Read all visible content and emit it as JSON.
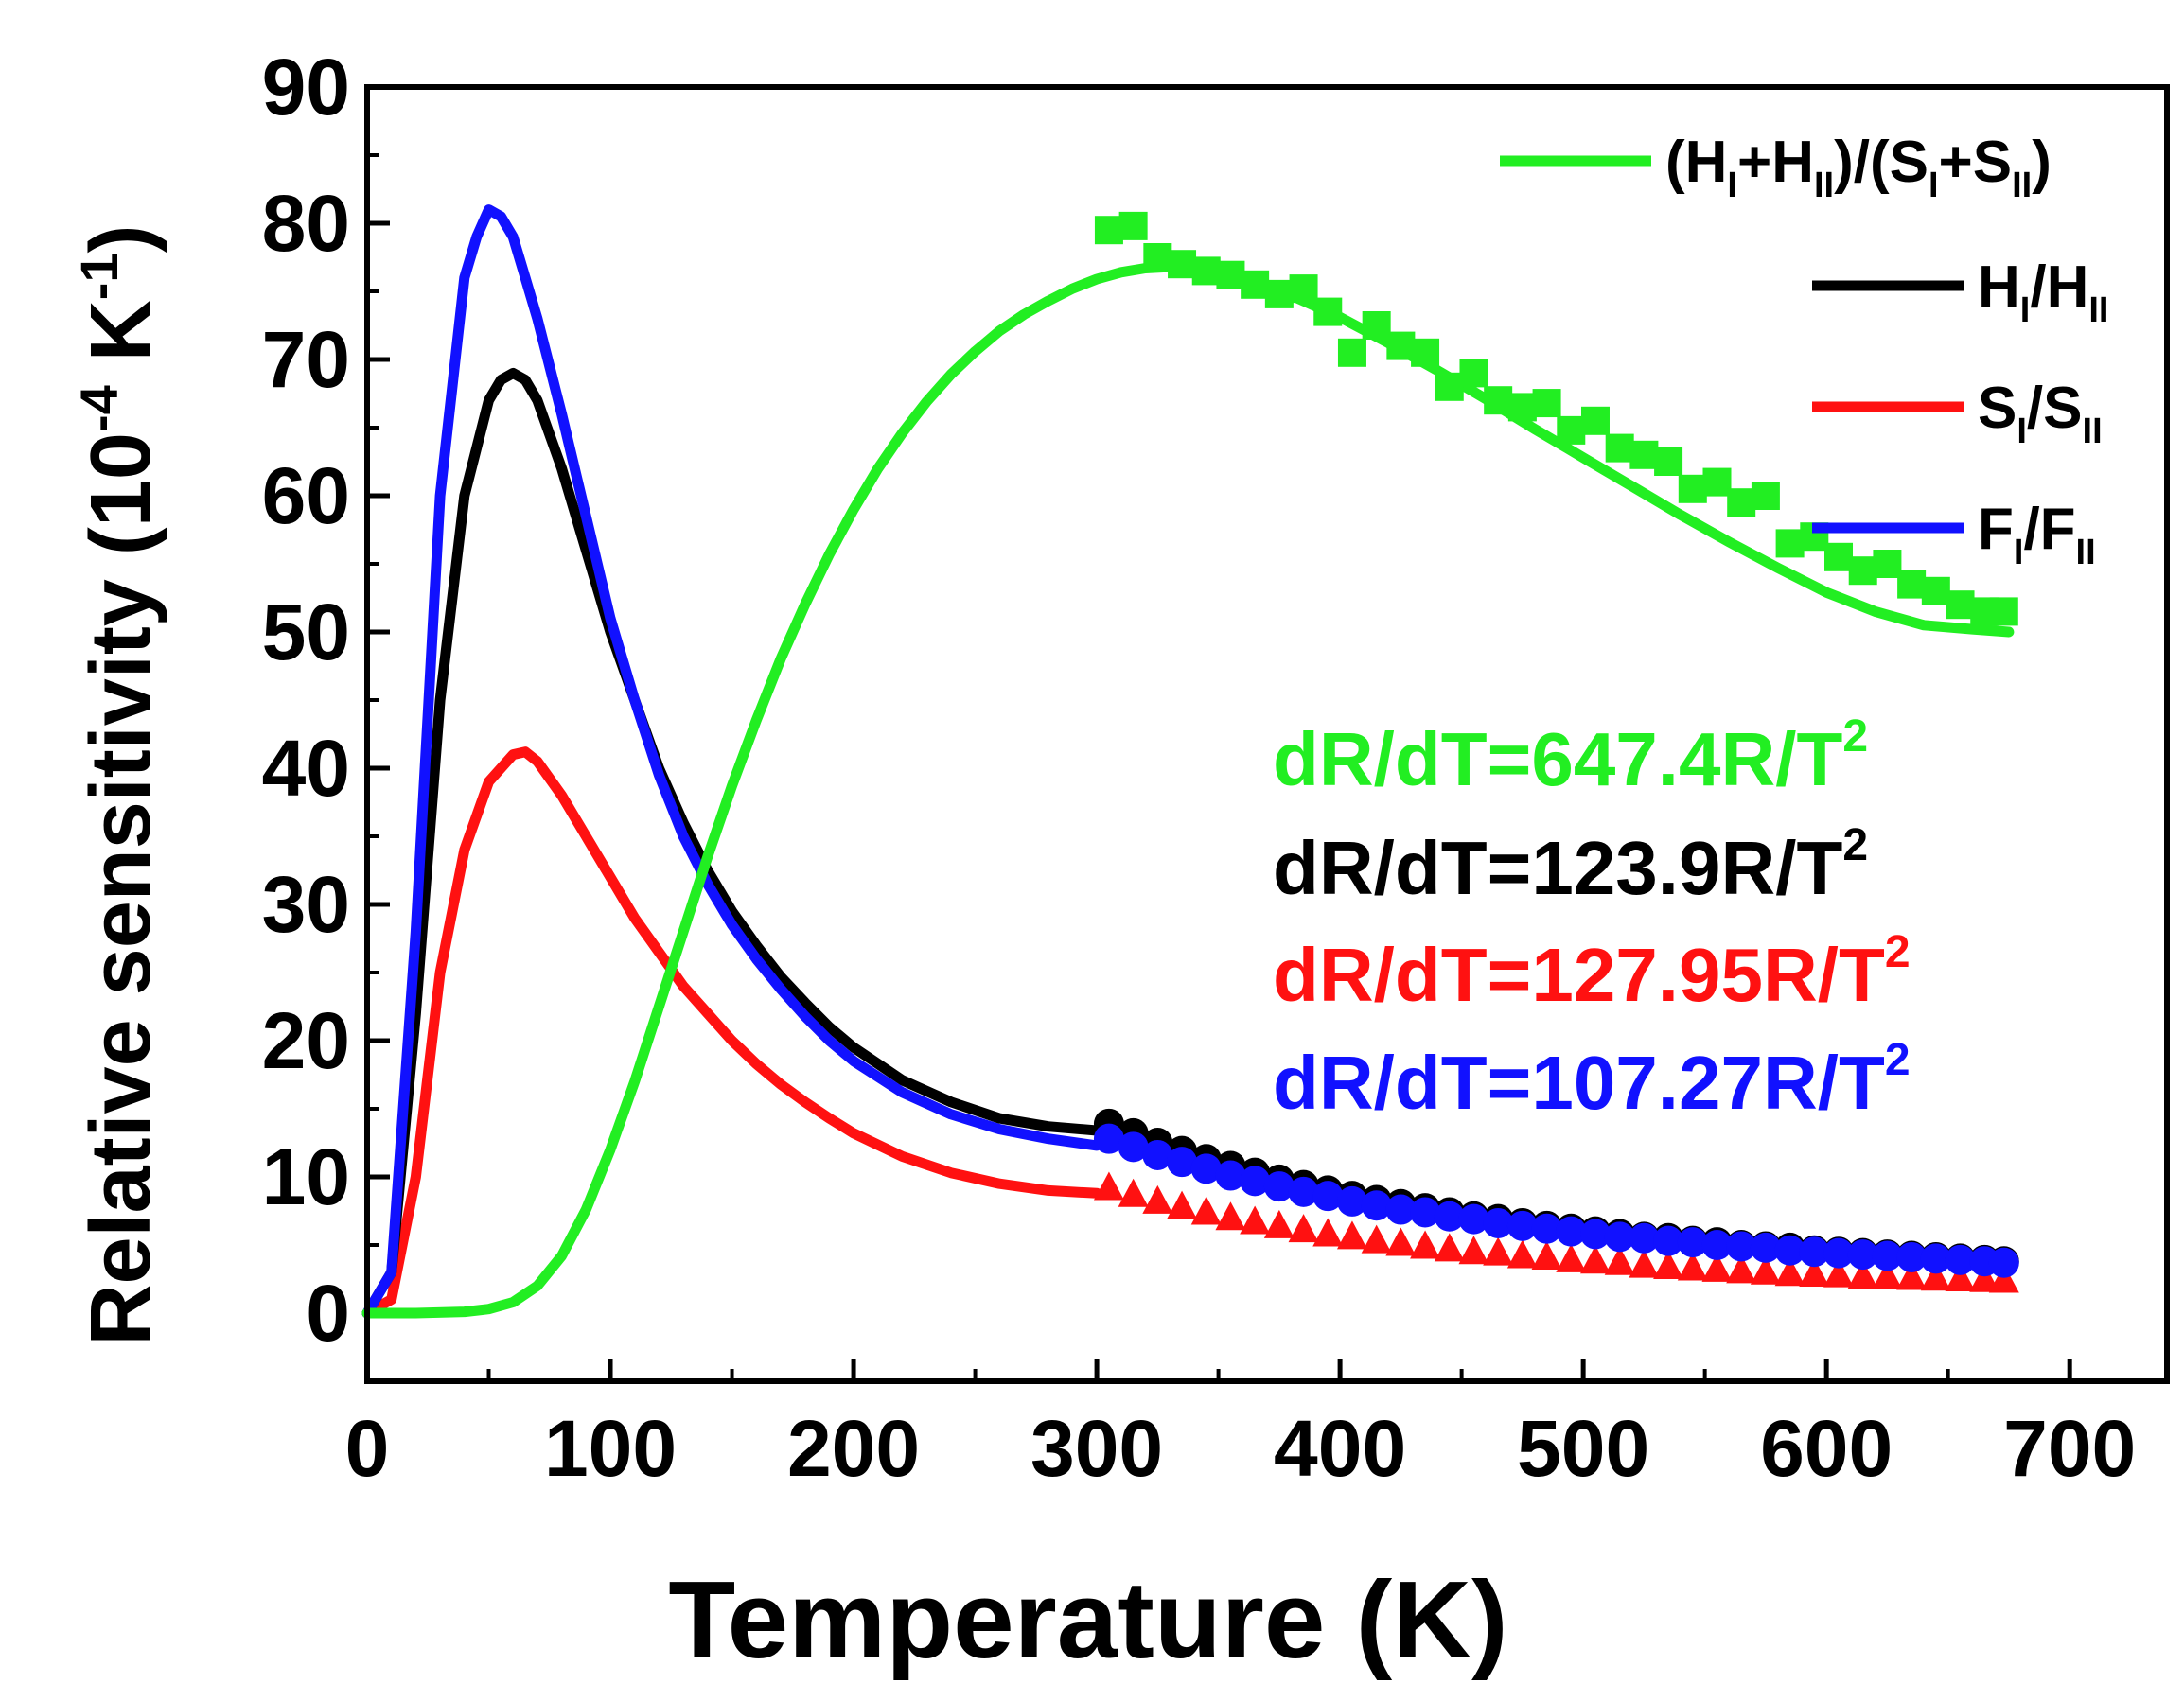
{
  "chart_data": {
    "type": "line",
    "title": "",
    "xlabel": "Temperature (K)",
    "ylabel": {
      "main": "Relative sensitivity (10",
      "exp1": "-4",
      "unit": " K",
      "exp2": "-1",
      "close": ")"
    },
    "xlim": [
      0,
      740
    ],
    "ylim": [
      -5,
      90
    ],
    "xticks": [
      0,
      100,
      200,
      300,
      400,
      500,
      600,
      700
    ],
    "yticks": [
      0,
      10,
      20,
      30,
      40,
      50,
      60,
      70,
      80,
      90
    ],
    "grid": false,
    "legend_position": "top-right",
    "series": [
      {
        "name": "(HI+HII)/(SI+SII)",
        "legend": {
          "p1": "(H",
          "s1": "I",
          "p2": "+H",
          "s2": "II",
          "p3": ")/(S",
          "s3": "I",
          "p4": "+S",
          "s4": "II",
          "p5": ")"
        },
        "color": "#22ee22",
        "marker": "square",
        "fit": {
          "x": [
            0,
            20,
            40,
            50,
            60,
            70,
            80,
            90,
            100,
            110,
            120,
            130,
            140,
            150,
            160,
            170,
            180,
            190,
            200,
            210,
            220,
            230,
            240,
            250,
            260,
            270,
            280,
            290,
            300,
            310,
            320,
            330,
            340,
            360,
            380,
            400,
            420,
            440,
            460,
            480,
            500,
            520,
            540,
            560,
            580,
            600,
            620,
            640,
            660,
            675
          ],
          "y": [
            0,
            0,
            0.1,
            0.3,
            0.8,
            2.0,
            4.2,
            7.6,
            12,
            17,
            22.5,
            28,
            33.5,
            38.7,
            43.5,
            48,
            52,
            55.7,
            59,
            62,
            64.6,
            66.9,
            68.9,
            70.6,
            72.1,
            73.3,
            74.3,
            75.2,
            75.9,
            76.4,
            76.7,
            76.8,
            76.7,
            76.0,
            74.7,
            73.1,
            71.2,
            69.2,
            67.1,
            64.9,
            62.8,
            60.7,
            58.6,
            56.6,
            54.7,
            52.9,
            51.5,
            50.5,
            50.2,
            50.0
          ]
        },
        "points": {
          "x": [
            305,
            315,
            325,
            335,
            345,
            355,
            365,
            375,
            385,
            395,
            405,
            415,
            425,
            435,
            445,
            455,
            465,
            475,
            485,
            495,
            505,
            515,
            525,
            535,
            545,
            555,
            565,
            575,
            585,
            595,
            605,
            615,
            625,
            635,
            645,
            655,
            665,
            673
          ],
          "y": [
            79.5,
            79.8,
            77.5,
            77.0,
            76.5,
            76.2,
            75.5,
            74.8,
            75.2,
            73.5,
            70.5,
            72.5,
            71.0,
            70.5,
            68.0,
            69.0,
            67.0,
            66.5,
            66.8,
            64.8,
            65.5,
            63.5,
            63.0,
            62.5,
            60.5,
            61.0,
            59.5,
            60.0,
            56.5,
            57.0,
            55.5,
            54.5,
            55.0,
            53.5,
            53.0,
            52.0,
            51.5,
            51.5
          ]
        }
      },
      {
        "name": "HI/HII",
        "legend": {
          "p1": "H",
          "s1": "I",
          "p2": "/H",
          "s2": "II"
        },
        "color": "#000000",
        "marker": "circle",
        "fit": {
          "x": [
            0,
            10,
            20,
            30,
            40,
            50,
            55,
            60,
            65,
            70,
            80,
            90,
            100,
            110,
            120,
            130,
            140,
            150,
            160,
            170,
            180,
            190,
            200,
            220,
            240,
            260,
            280,
            300
          ],
          "y": [
            0,
            3,
            22,
            45,
            60,
            67,
            68.5,
            69,
            68.5,
            67,
            62,
            56,
            50,
            45,
            40,
            36,
            32.5,
            29.5,
            27,
            24.7,
            22.8,
            21,
            19.5,
            17.1,
            15.5,
            14.3,
            13.7,
            13.4
          ]
        },
        "points": {
          "x": [
            305,
            315,
            325,
            335,
            345,
            355,
            365,
            375,
            385,
            395,
            405,
            415,
            425,
            435,
            445,
            455,
            465,
            475,
            485,
            495,
            505,
            515,
            525,
            535,
            545,
            555,
            565,
            575,
            585,
            595,
            605,
            615,
            625,
            635,
            645,
            655,
            665,
            673
          ],
          "y": [
            13.9,
            13.2,
            12.5,
            11.9,
            11.3,
            10.8,
            10.3,
            9.8,
            9.4,
            9.0,
            8.6,
            8.3,
            8.0,
            7.7,
            7.4,
            7.1,
            6.9,
            6.6,
            6.4,
            6.2,
            6.0,
            5.8,
            5.6,
            5.5,
            5.3,
            5.2,
            5.0,
            4.9,
            4.8,
            4.6,
            4.5,
            4.4,
            4.3,
            4.2,
            4.1,
            4.0,
            3.9,
            3.8
          ]
        }
      },
      {
        "name": "SI/SII",
        "legend": {
          "p1": "S",
          "s1": "I",
          "p2": "/S",
          "s2": "II"
        },
        "color": "#ff1111",
        "marker": "triangle",
        "fit": {
          "x": [
            0,
            10,
            20,
            30,
            40,
            50,
            60,
            65,
            70,
            80,
            90,
            100,
            110,
            120,
            130,
            140,
            150,
            160,
            170,
            180,
            190,
            200,
            220,
            240,
            260,
            280,
            300
          ],
          "y": [
            0,
            1,
            10,
            25,
            34,
            39,
            41,
            41.2,
            40.5,
            38,
            35,
            32,
            29,
            26.5,
            24,
            22,
            20,
            18.3,
            16.8,
            15.5,
            14.3,
            13.2,
            11.5,
            10.3,
            9.5,
            9.0,
            8.8
          ]
        },
        "points": {
          "x": [
            305,
            315,
            325,
            335,
            345,
            355,
            365,
            375,
            385,
            395,
            405,
            415,
            425,
            435,
            445,
            455,
            465,
            475,
            485,
            495,
            505,
            515,
            525,
            535,
            545,
            555,
            565,
            575,
            585,
            595,
            605,
            615,
            625,
            635,
            645,
            655,
            665,
            673
          ],
          "y": [
            9.2,
            8.7,
            8.2,
            7.8,
            7.4,
            7.0,
            6.7,
            6.4,
            6.1,
            5.8,
            5.6,
            5.3,
            5.1,
            4.9,
            4.7,
            4.5,
            4.4,
            4.2,
            4.1,
            3.9,
            3.8,
            3.7,
            3.5,
            3.4,
            3.3,
            3.2,
            3.1,
            3.0,
            2.9,
            2.85,
            2.8,
            2.7,
            2.65,
            2.6,
            2.55,
            2.5,
            2.45,
            2.4
          ]
        }
      },
      {
        "name": "FI/FII",
        "legend": {
          "p1": "F",
          "s1": "I",
          "p2": "/F",
          "s2": "II"
        },
        "color": "#1111ff",
        "marker": "circle",
        "fit": {
          "x": [
            0,
            10,
            20,
            30,
            40,
            45,
            50,
            55,
            60,
            65,
            70,
            80,
            90,
            100,
            110,
            120,
            130,
            140,
            150,
            160,
            170,
            180,
            190,
            200,
            220,
            240,
            260,
            280,
            300
          ],
          "y": [
            0,
            3,
            28,
            60,
            76,
            79,
            81,
            80.5,
            79,
            76,
            73,
            66,
            58.5,
            51,
            45,
            39.5,
            35,
            31.5,
            28.5,
            26,
            23.8,
            21.8,
            20,
            18.5,
            16.2,
            14.6,
            13.5,
            12.8,
            12.3
          ]
        },
        "points": {
          "x": [
            305,
            315,
            325,
            335,
            345,
            355,
            365,
            375,
            385,
            395,
            405,
            415,
            425,
            435,
            445,
            455,
            465,
            475,
            485,
            495,
            505,
            515,
            525,
            535,
            545,
            555,
            565,
            575,
            585,
            595,
            605,
            615,
            625,
            635,
            645,
            655,
            665,
            673
          ],
          "y": [
            12.8,
            12.2,
            11.6,
            11.1,
            10.6,
            10.1,
            9.7,
            9.3,
            8.9,
            8.6,
            8.2,
            7.9,
            7.6,
            7.4,
            7.1,
            6.9,
            6.6,
            6.4,
            6.2,
            6.0,
            5.8,
            5.6,
            5.5,
            5.3,
            5.2,
            5.0,
            4.9,
            4.8,
            4.6,
            4.5,
            4.4,
            4.3,
            4.2,
            4.1,
            4.0,
            3.9,
            3.8,
            3.7
          ]
        }
      }
    ],
    "annotations": [
      {
        "base": "dR/dT=647.4R/T",
        "sup": "2",
        "color": "#22ee22"
      },
      {
        "base": "dR/dT=123.9R/T",
        "sup": "2",
        "color": "#000000"
      },
      {
        "base": "dR/dT=127.95R/T",
        "sup": "2",
        "color": "#ff1111"
      },
      {
        "base": "dR/dT=107.27R/T",
        "sup": "2",
        "color": "#1111ff"
      }
    ]
  }
}
